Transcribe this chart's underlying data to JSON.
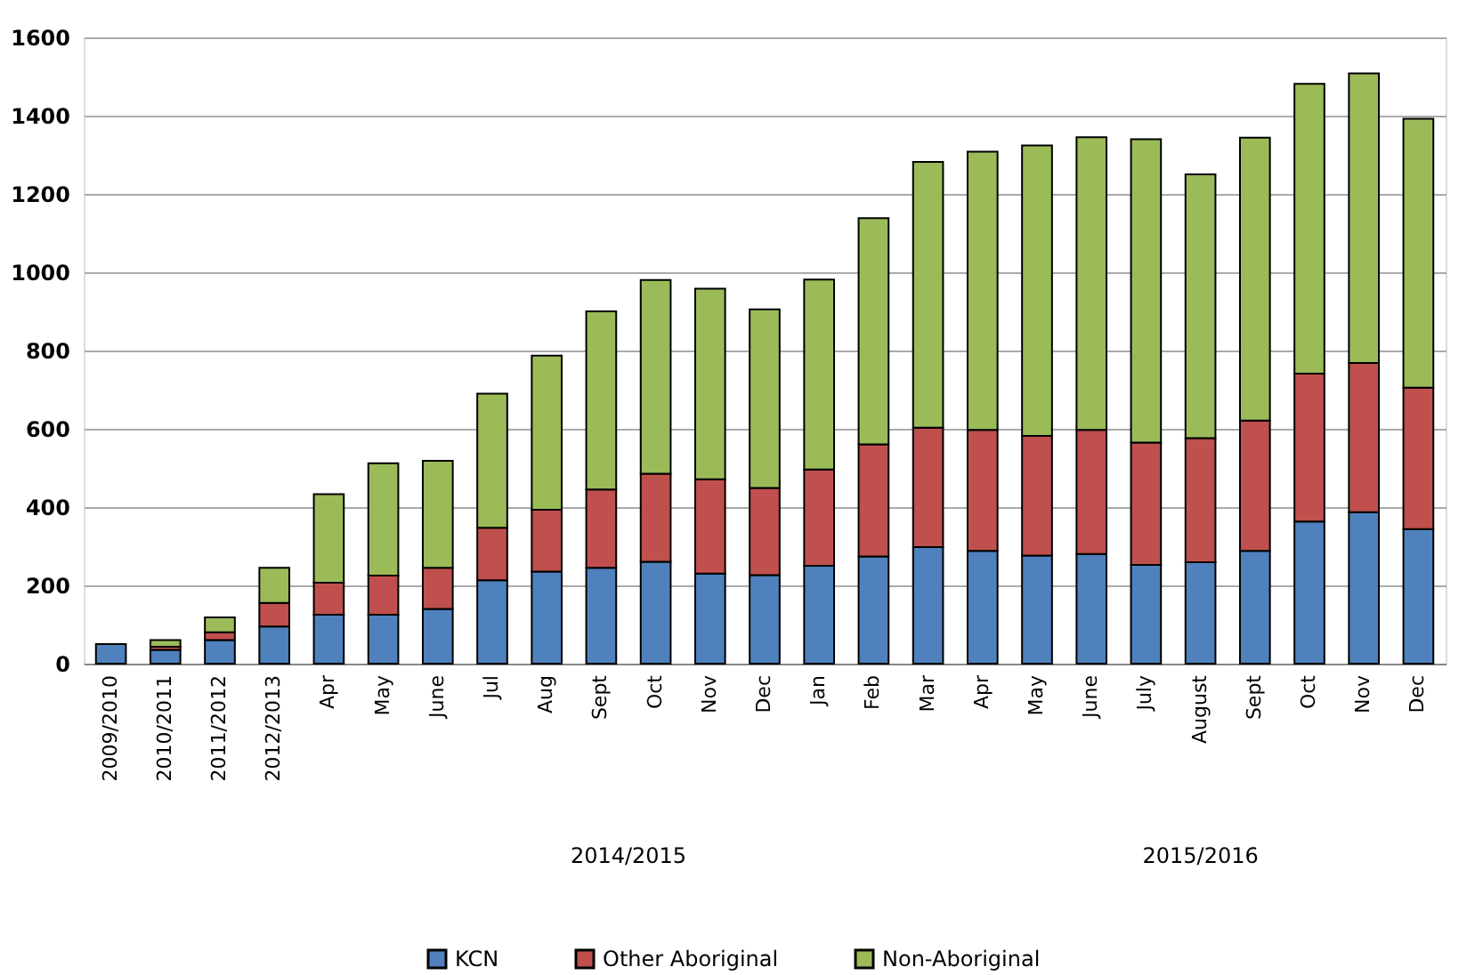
{
  "chart_data": {
    "type": "bar",
    "stacked": true,
    "categories": [
      "2009/2010",
      "2010/2011",
      "2011/2012",
      "2012/2013",
      "Apr",
      "May",
      "June",
      "Jul",
      "Aug",
      "Sept",
      "Oct",
      "Nov",
      "Dec",
      "Jan",
      "Feb",
      "Mar",
      "Apr",
      "May",
      "June",
      "July",
      "August",
      "Sept",
      "Oct",
      "Nov",
      "Dec"
    ],
    "series": [
      {
        "name": "KCN",
        "color": "#4f81bd",
        "values": [
          50,
          35,
          60,
          95,
          125,
          125,
          140,
          213,
          235,
          245,
          260,
          230,
          226,
          250,
          274,
          298,
          288,
          276,
          280,
          252,
          259,
          288,
          363,
          387,
          344
        ]
      },
      {
        "name": "Other Aboriginal",
        "color": "#c0504d",
        "values": [
          null,
          8,
          20,
          60,
          82,
          100,
          105,
          134,
          158,
          200,
          225,
          241,
          223,
          246,
          286,
          305,
          309,
          306,
          317,
          313,
          317,
          333,
          378,
          381,
          361
        ]
      },
      {
        "name": "Non-Aboriginal",
        "color": "#9bbb59",
        "values": [
          null,
          17,
          38,
          90,
          226,
          287,
          273,
          343,
          394,
          455,
          495,
          487,
          456,
          485,
          578,
          679,
          711,
          742,
          748,
          775,
          674,
          723,
          740,
          740,
          687
        ]
      }
    ],
    "ylim": [
      0,
      1600
    ],
    "yticks": [
      0,
      200,
      400,
      600,
      800,
      1000,
      1200,
      1400,
      1600
    ],
    "grid": "y",
    "legend": "bottom",
    "annotations": [
      "2014/2015",
      "2015/2016"
    ]
  }
}
